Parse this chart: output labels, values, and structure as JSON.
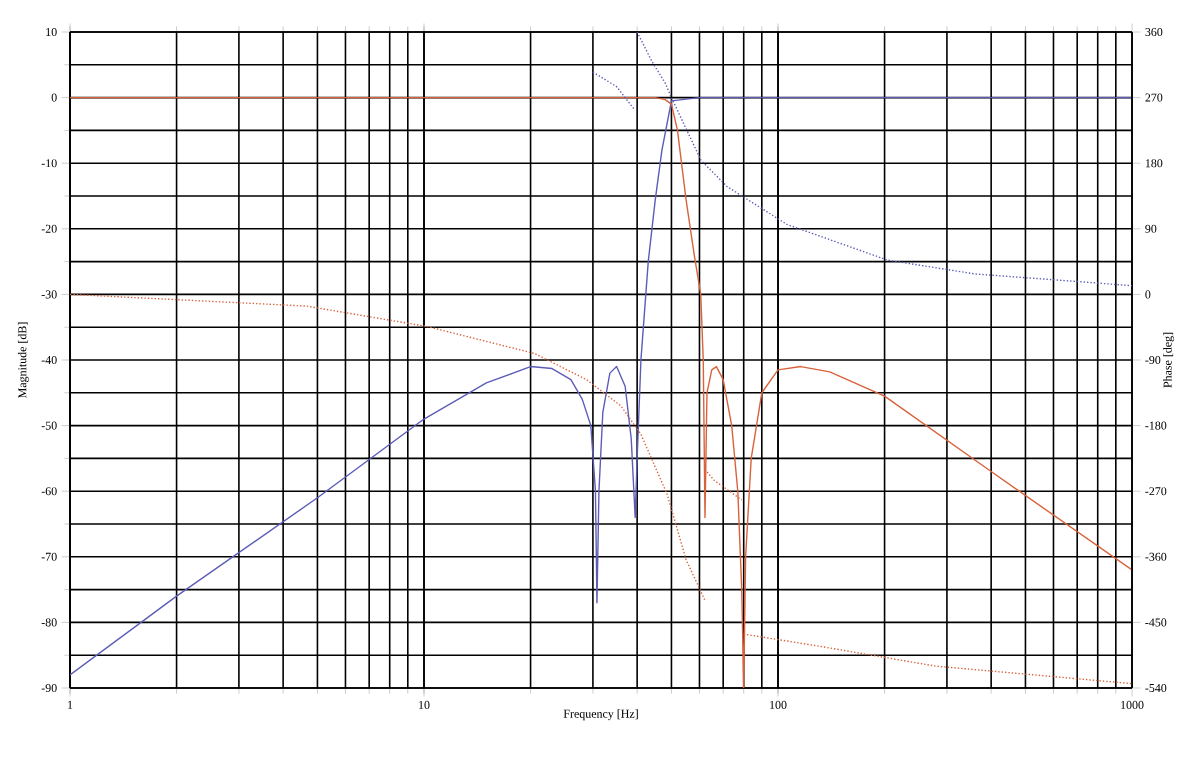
{
  "chart_data": {
    "type": "line",
    "xlabel": "Frequency [Hz]",
    "ylabel": "Magnitude [dB]",
    "y2label": "Phase [deg]",
    "log": "x",
    "grid": true,
    "xlim": [
      1,
      1000
    ],
    "xticks": [
      1,
      10,
      100,
      1000
    ],
    "ylim": [
      -90,
      10
    ],
    "yticks": [
      -90,
      -80,
      -70,
      -60,
      -50,
      -40,
      -30,
      -20,
      -10,
      0,
      10
    ],
    "y2lim": [
      -540,
      360
    ],
    "y2ticks": [
      -540,
      -450,
      -360,
      -270,
      -180,
      -90,
      0,
      90,
      180,
      270,
      360
    ],
    "series": [
      {
        "color": "#5c5cb8",
        "line_style": "solid",
        "x": [
          1,
          2,
          5,
          10,
          15,
          20,
          23,
          26,
          28,
          29.6,
          30.5,
          30.8,
          31.2,
          32,
          33.5,
          35,
          37,
          38.5,
          39.5,
          40,
          41,
          43,
          45,
          47,
          50,
          60,
          100,
          1000
        ],
        "values": [
          -88,
          -76,
          -61,
          -49,
          -43.5,
          -41,
          -41.3,
          -43,
          -46,
          -50,
          -60,
          -77,
          -60,
          -48,
          -42,
          -41,
          -44,
          -52,
          -64,
          -55,
          -40,
          -25,
          -15.6,
          -8,
          -0.5,
          0,
          0,
          0
        ]
      },
      {
        "color": "#d9623b",
        "line_style": "solid",
        "x": [
          1,
          45,
          48,
          50,
          52,
          55,
          58,
          60.5,
          61.5,
          62.2,
          63,
          65,
          67,
          70,
          74,
          77,
          79,
          80,
          81,
          84,
          90,
          100,
          116,
          140,
          200,
          400,
          1000
        ],
        "values": [
          0,
          0,
          -0.3,
          -1,
          -5,
          -15.6,
          -24,
          -30,
          -40,
          -64,
          -45,
          -41.5,
          -41,
          -43,
          -50,
          -60,
          -75,
          -90,
          -70,
          -55,
          -45,
          -41.5,
          -41,
          -41.8,
          -45.5,
          -57,
          -72
        ]
      },
      {
        "color": "#5c5cb8",
        "line_style": "dotted",
        "axis": "y2",
        "x": [
          30,
          35,
          39.4
        ],
        "values": [
          305,
          285,
          253
        ]
      },
      {
        "color": "#5c5cb8",
        "line_style": "dotted",
        "axis": "y2",
        "x": [
          40,
          44,
          48,
          50,
          60.6,
          71.8,
          106,
          204,
          361,
          1000
        ],
        "values": [
          360,
          320,
          290,
          270,
          184,
          148,
          96,
          47,
          28,
          12
        ]
      },
      {
        "color": "#d9623b",
        "line_style": "dotted",
        "axis": "y2",
        "x": [
          1,
          4.65,
          10.2,
          20.5,
          28.8,
          36,
          41,
          48.6,
          55,
          62.2
        ],
        "values": [
          0,
          -16,
          -44,
          -81,
          -117,
          -153,
          -192,
          -274,
          -364,
          -420
        ]
      },
      {
        "color": "#d9623b",
        "line_style": "dotted",
        "axis": "y2",
        "x": [
          62.2,
          66,
          79
        ],
        "values": [
          -240,
          -255,
          -282
        ]
      },
      {
        "color": "#d9623b",
        "line_style": "dotted",
        "axis": "y2",
        "x": [
          80,
          132,
          279,
          1000
        ],
        "values": [
          -466,
          -483,
          -510,
          -534
        ]
      }
    ]
  }
}
